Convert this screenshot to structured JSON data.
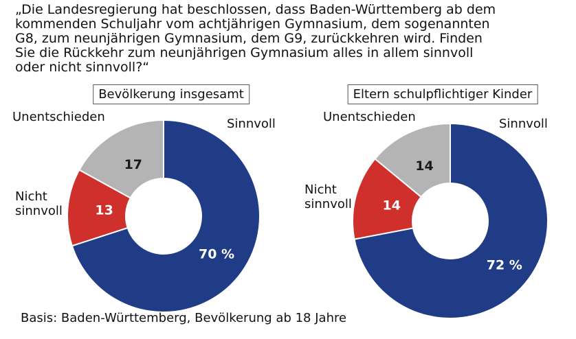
{
  "question": "„Die Landesregierung hat beschlossen, dass Baden-Württemberg ab dem kommenden Schuljahr vom achtjährigen Gymnasium, dem sogenannten G8, zum neunjährigen Gymnasium, dem G9, zurückkehren wird. Finden Sie die Rückkehr zum neunjährigen Gymnasium alles in allem sinnvoll oder nicht sinnvoll?“",
  "note": "Basis: Baden-Württemberg, Bevölkerung ab 18 Jahre",
  "chart_data": [
    {
      "type": "donut",
      "title": "Bevölkerung insgesamt",
      "categories": [
        "Sinnvoll",
        "Nicht sinnvoll",
        "Unentschieden"
      ],
      "values": [
        70,
        13,
        17
      ],
      "value_labels": [
        "70 %",
        "13",
        "17"
      ],
      "colors": [
        "#203c87",
        "#d0302b",
        "#b4b4b4"
      ],
      "value_label_colors": [
        "#ffffff",
        "#ffffff",
        "#1a1a1a"
      ]
    },
    {
      "type": "donut",
      "title": "Eltern schulpflichtiger Kinder",
      "categories": [
        "Sinnvoll",
        "Nicht sinnvoll",
        "Unentschieden"
      ],
      "values": [
        72,
        14,
        14
      ],
      "value_labels": [
        "72 %",
        "14",
        "14"
      ],
      "colors": [
        "#203c87",
        "#d0302b",
        "#b4b4b4"
      ],
      "value_label_colors": [
        "#ffffff",
        "#ffffff",
        "#1a1a1a"
      ]
    }
  ]
}
